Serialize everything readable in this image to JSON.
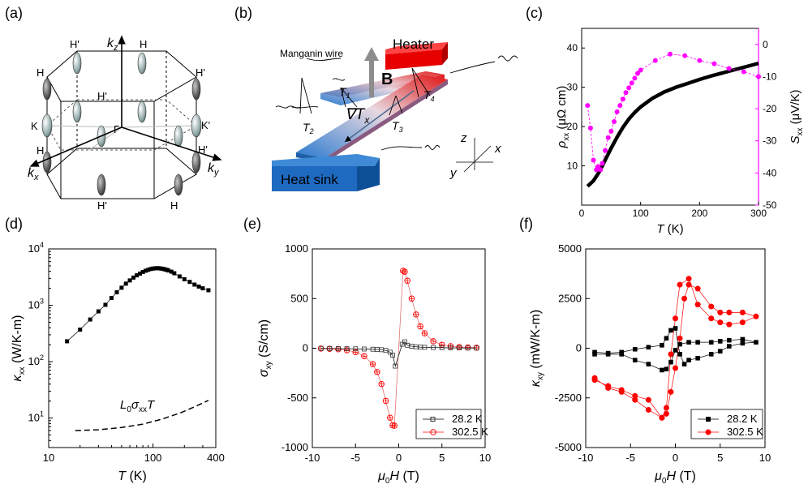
{
  "panels": {
    "a": {
      "label": "(a)"
    },
    "b": {
      "label": "(b)"
    },
    "c": {
      "label": "(c)"
    },
    "d": {
      "label": "(d)"
    },
    "e": {
      "label": "(e)"
    },
    "f": {
      "label": "(f)"
    }
  },
  "bz": {
    "kz": "k",
    "kz_sub": "z",
    "kx": "k",
    "kx_sub": "x",
    "ky": "k",
    "ky_sub": "y",
    "points": [
      "H'",
      "H",
      "H",
      "H'",
      "K",
      "H'",
      "K'",
      "Γ",
      "H",
      "H'",
      "H'",
      "H"
    ]
  },
  "setup": {
    "manganin": "Manganin wire",
    "heater": "Heater",
    "heatsink": "Heat sink",
    "B": "B",
    "grad": "∇T",
    "grad_sub": "x",
    "T1": "T",
    "T1_sub": "1",
    "T2": "T",
    "T2_sub": "2",
    "T3": "T",
    "T3_sub": "3",
    "T4": "T",
    "T4_sub": "4",
    "ax_z": "z",
    "ax_x": "x",
    "ax_y": "y"
  },
  "colors": {
    "rho": "#000000",
    "seebeck": "#ff00ff",
    "low": "#000000",
    "high": "#ff0000",
    "high_light": "#e06060"
  },
  "chart_data": [
    {
      "panel": "c",
      "type": "line",
      "xlabel": "T (K)",
      "ylabel_left": "ρxx (μΩ cm)",
      "ylabel_right": "Sxx (μV/K)",
      "xlim": [
        0,
        300
      ],
      "ylim_left": [
        0,
        45
      ],
      "ylim_right": [
        -50,
        5
      ],
      "xticks": [
        0,
        100,
        200,
        300
      ],
      "yticks_left": [
        10,
        20,
        30,
        40
      ],
      "yticks_right": [
        0,
        -10,
        -20,
        -30,
        -40,
        -50
      ],
      "rho": {
        "x": [
          10,
          20,
          30,
          40,
          50,
          60,
          70,
          80,
          90,
          100,
          120,
          140,
          160,
          180,
          200,
          220,
          240,
          260,
          280,
          300
        ],
        "y": [
          4.8,
          6.2,
          8.5,
          11.5,
          14.5,
          17.3,
          19.8,
          21.9,
          23.6,
          25.0,
          27.2,
          28.8,
          30.0,
          31.0,
          32.0,
          32.9,
          33.7,
          34.5,
          35.3,
          36.1
        ]
      },
      "seebeck": {
        "x": [
          10,
          15,
          20,
          25,
          28,
          32,
          35,
          40,
          45,
          50,
          55,
          60,
          65,
          70,
          75,
          80,
          85,
          90,
          95,
          100,
          125,
          150,
          175,
          200,
          225,
          250,
          275,
          300
        ],
        "y": [
          -19,
          -26,
          -36,
          -39,
          -38,
          -39,
          -37,
          -33,
          -29,
          -27,
          -24,
          -21,
          -19,
          -17,
          -15,
          -13.5,
          -12,
          -10.5,
          -9,
          -8,
          -5,
          -3,
          -3.5,
          -5,
          -6,
          -7.5,
          -8.5,
          -10
        ]
      }
    },
    {
      "panel": "d",
      "type": "scatter",
      "xlabel": "T (K)",
      "ylabel": "κxx (W/K-m)",
      "xscale": "log",
      "yscale": "log",
      "xlim": [
        10,
        400
      ],
      "ylim": [
        3,
        10000
      ],
      "xticks": [
        10,
        100,
        400
      ],
      "yticks_label": [
        "10^1",
        "10^2",
        "10^3",
        "10^4"
      ],
      "annotation": "L0σxxT",
      "kappa": {
        "x": [
          15,
          20,
          25,
          30,
          35,
          40,
          45,
          50,
          55,
          60,
          65,
          70,
          75,
          80,
          85,
          90,
          95,
          100,
          105,
          110,
          115,
          120,
          125,
          130,
          135,
          140,
          150,
          160,
          180,
          200,
          225,
          250,
          275,
          300,
          340
        ],
        "y": [
          230,
          370,
          560,
          780,
          1020,
          1350,
          1700,
          2050,
          2420,
          2760,
          3100,
          3400,
          3650,
          3900,
          4100,
          4250,
          4400,
          4480,
          4530,
          4550,
          4530,
          4480,
          4420,
          4340,
          4250,
          4150,
          3950,
          3700,
          3250,
          2900,
          2600,
          2330,
          2150,
          2000,
          1850
        ]
      },
      "lorenz": {
        "x": [
          18,
          30,
          50,
          80,
          120,
          180,
          250,
          340
        ],
        "y": [
          6.0,
          6.2,
          6.8,
          7.8,
          9.5,
          12.2,
          15.8,
          20.6
        ]
      }
    },
    {
      "panel": "e",
      "type": "line",
      "xlabel": "μ0H (T)",
      "ylabel": "σxy (S/cm)",
      "xlim": [
        -10,
        10
      ],
      "ylim": [
        -1000,
        1000
      ],
      "xticks": [
        -10,
        -5,
        0,
        5,
        10
      ],
      "yticks": [
        -1000,
        -500,
        0,
        500,
        1000
      ],
      "legend": [
        "28.2 K",
        "302.5 K"
      ],
      "series": [
        {
          "name": "28.2 K",
          "x": [
            -9,
            -8,
            -7,
            -6,
            -5,
            -4,
            -3,
            -2.5,
            -2,
            -1.5,
            -1,
            -0.7,
            -0.4,
            0.4,
            0.7,
            1,
            1.5,
            2,
            2.5,
            3,
            4,
            5,
            6,
            7,
            8,
            9
          ],
          "y": [
            -2,
            -3,
            -4,
            -5,
            -6,
            -8,
            -10,
            -12,
            -15,
            -22,
            -40,
            -70,
            -180,
            40,
            65,
            30,
            20,
            14,
            11,
            9,
            7,
            5,
            4,
            3,
            2,
            2
          ]
        },
        {
          "name": "302.5 K",
          "x": [
            -9,
            -8,
            -7,
            -6,
            -5,
            -4,
            -3,
            -2.5,
            -2,
            -1.5,
            -1,
            -0.7,
            -0.5,
            0.5,
            0.7,
            1,
            1.5,
            2,
            2.5,
            3,
            4,
            5,
            6,
            7,
            8,
            9
          ],
          "y": [
            -3,
            -6,
            -10,
            -20,
            -40,
            -80,
            -160,
            -240,
            -360,
            -530,
            -700,
            -775,
            -780,
            780,
            770,
            680,
            500,
            340,
            220,
            150,
            70,
            35,
            20,
            12,
            8,
            5
          ]
        }
      ]
    },
    {
      "panel": "f",
      "type": "line",
      "xlabel": "μ0H (T)",
      "ylabel": "κxy (mW/K-m)",
      "xlim": [
        -10,
        10
      ],
      "ylim": [
        -5000,
        5000
      ],
      "xticks": [
        -10,
        -5,
        0,
        5,
        10
      ],
      "yticks": [
        -5000,
        -2500,
        0,
        2500,
        5000
      ],
      "legend": [
        "28.2 K",
        "302.5 K"
      ],
      "series": [
        {
          "name": "28.2 K",
          "x": [
            -9,
            -7.5,
            -6,
            -4.5,
            -3,
            -1.5,
            -1,
            -0.5,
            0,
            0.5,
            1,
            1.5,
            2.5,
            4,
            5,
            6,
            7.5,
            9,
            7.5,
            6,
            5,
            4,
            2.5,
            1.5,
            0.5,
            0,
            -0.5,
            -1,
            -1.5,
            -3,
            -4.5,
            -6,
            -7.5,
            -9
          ],
          "y": [
            -200,
            -250,
            -200,
            -50,
            50,
            150,
            500,
            900,
            1000,
            -300,
            -800,
            -600,
            -500,
            -300,
            -150,
            100,
            250,
            300,
            450,
            400,
            350,
            300,
            300,
            300,
            200,
            -100,
            -700,
            -1050,
            -1100,
            -800,
            -600,
            -300,
            -300,
            -300
          ]
        },
        {
          "name": "302.5 K",
          "x": [
            -9,
            -7.5,
            -6,
            -4.5,
            -3,
            -1.5,
            -1,
            -0.5,
            0,
            0.5,
            1,
            1.5,
            2.5,
            4,
            5,
            6,
            7.5,
            9,
            7.5,
            6,
            5,
            4,
            2.5,
            1.5,
            0.5,
            0,
            -0.5,
            -1,
            -1.5,
            -3,
            -4.5,
            -6,
            -7.5,
            -9
          ],
          "y": [
            -1500,
            -2000,
            -2200,
            -2600,
            -3100,
            -3500,
            -3300,
            -2200,
            -1000,
            500,
            2500,
            3200,
            3000,
            2100,
            1800,
            1800,
            1800,
            1600,
            1300,
            1200,
            1300,
            1500,
            2200,
            3500,
            3200,
            1500,
            -300,
            -3000,
            -3500,
            -2600,
            -2400,
            -2100,
            -1900,
            -1600
          ]
        }
      ]
    }
  ]
}
